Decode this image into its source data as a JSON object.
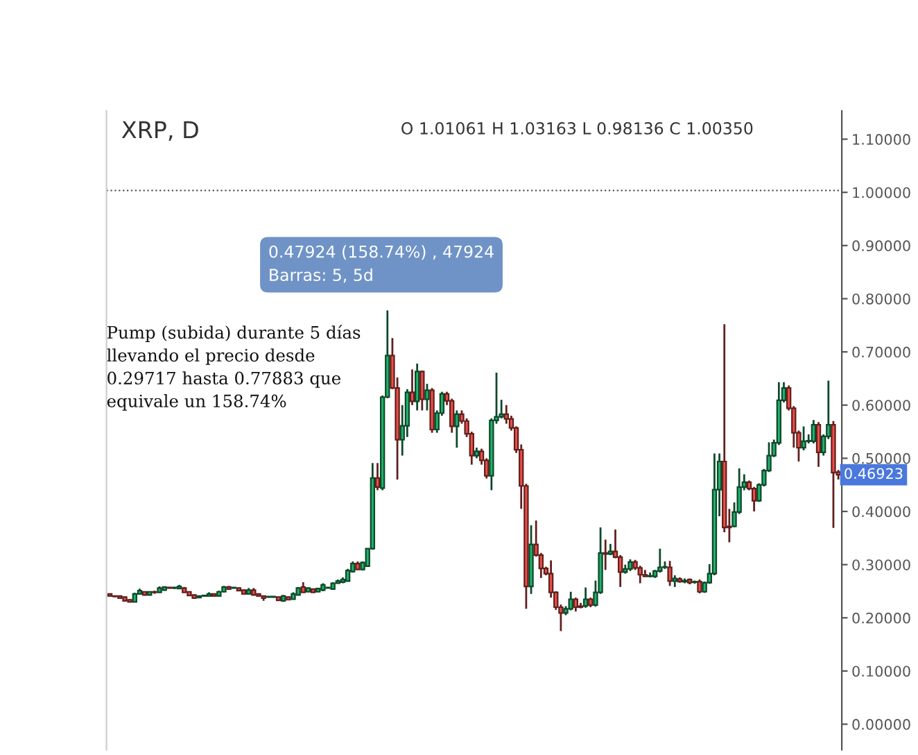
{
  "chart_data": {
    "type": "candlestick",
    "title": "XRP, D",
    "subtitle": "O 1.01061 H 1.03163 L 0.98136 C 1.00350",
    "annotations": [
      "0.47924 (158.74%) , 47924",
      "Barras: 5, 5d",
      "Pump (subida) durante 5 días\nllevando el precio desde\n0.29717 hasta 0.77883 que\nequivale un 158.74%",
      "0.46923"
    ],
    "colors": [
      "#ef4f49",
      "#ef4f49",
      "#ef4f49",
      "#ef4f49",
      "#ef4f49",
      "#22b36c",
      "#22b36c",
      "#ef4f49",
      "#22b36c",
      "#ef4f49",
      "#22b36c",
      "#22b36c",
      "#ef4f49",
      "#22b36c",
      "#22b36c",
      "#ef4f49",
      "#ef4f49",
      "#ef4f49",
      "#22b36c",
      "#22b36c",
      "#22b36c",
      "#ef4f49",
      "#22b36c",
      "#22b36c",
      "#ef4f49",
      "#22b36c",
      "#ef4f49",
      "#ef4f49",
      "#22b36c",
      "#ef4f49",
      "#ef4f49",
      "#ef4f49",
      "#22b36c",
      "#22b36c",
      "#ef4f49",
      "#22b36c",
      "#ef4f49",
      "#22b36c",
      "#22b36c",
      "#ef4f49",
      "#22b36c",
      "#ef4f49",
      "#22b36c",
      "#22b36c",
      "#22b36c",
      "#22b36c",
      "#22b36c",
      "#22b36c",
      "#22b36c",
      "#22b36c",
      "#ef4f49",
      "#22b36c",
      "#22b36c",
      "#22b36c",
      "#ef4f49",
      "#22b36c",
      "#22b36c",
      "#ef4f49",
      "#ef4f49",
      "#22b36c",
      "#22b36c",
      "#ef4f49",
      "#22b36c",
      "#ef4f49",
      "#22b36c",
      "#ef4f49",
      "#22b36c",
      "#22b36c",
      "#ef4f49",
      "#ef4f49",
      "#22b36c",
      "#ef4f49",
      "#ef4f49",
      "#ef4f49",
      "#22b36c",
      "#ef4f49",
      "#ef4f49",
      "#22b36c",
      "#22b36c",
      "#22b36c",
      "#ef4f49",
      "#ef4f49",
      "#ef4f49",
      "#ef4f49",
      "#ef4f49",
      "#22b36c",
      "#ef4f49",
      "#ef4f49",
      "#ef4f49",
      "#ef4f49",
      "#ef4f49",
      "#ef4f49",
      "#22b36c",
      "#22b36c",
      "#ef4f49",
      "#ef4f49",
      "#22b36c",
      "#ef4f49",
      "#22b36c",
      "#22b36c",
      "#ef4f49",
      "#22b36c",
      "#ef4f49",
      "#ef4f49",
      "#22b36c",
      "#22b36c",
      "#ef4f49",
      "#ef4f49",
      "#ef4f49",
      "#22b36c",
      "#22b36c",
      "#22b36c",
      "#22b36c",
      "#ef4f49",
      "#22b36c",
      "#ef4f49",
      "#22b36c",
      "#ef4f49",
      "#22b36c",
      "#ef4f49",
      "#22b36c",
      "#22b36c",
      "#22b36c",
      "#22b36c",
      "#ef4f49",
      "#ef4f49",
      "#22b36c",
      "#22b36c",
      "#22b36c",
      "#ef4f49",
      "#ef4f49",
      "#22b36c",
      "#22b36c",
      "#22b36c",
      "#22b36c",
      "#22b36c",
      "#22b36c",
      "#ef4f49",
      "#ef4f49",
      "#ef4f49",
      "#22b36c",
      "#22b36c",
      "#22b36c",
      "#ef4f49",
      "#22b36c",
      "#22b36c",
      "#ef4f49",
      "#ef4f49"
    ],
    "ylim": [
      -0.048,
      1.153
    ],
    "yticks": [
      {
        "value": 0,
        "label": "0.00000"
      },
      {
        "value": 0.1,
        "label": "0.10000"
      },
      {
        "value": 0.2,
        "label": "0.20000"
      },
      {
        "value": 0.3,
        "label": "0.30000"
      },
      {
        "value": 0.4,
        "label": "0.40000"
      },
      {
        "value": 0.5,
        "label": "0.50000"
      },
      {
        "value": 0.6,
        "label": "0.60000"
      },
      {
        "value": 0.7,
        "label": "0.70000"
      },
      {
        "value": 0.8,
        "label": "0.80000"
      },
      {
        "value": 0.9,
        "label": "0.90000"
      },
      {
        "value": 1.0,
        "label": "1.00000"
      },
      {
        "value": 1.1,
        "label": "1.10000"
      }
    ],
    "ref_lines": [
      {
        "axis": "y",
        "value": 1.0035,
        "line_style": "dotted",
        "color": "#444444"
      }
    ],
    "tick_labels": "y",
    "grid": false,
    "legend": false,
    "categories": [
      null,
      null,
      null,
      null,
      null,
      null,
      null,
      null,
      null,
      null,
      null,
      null,
      null,
      null,
      null,
      null,
      null,
      null,
      null,
      null,
      null,
      null,
      null,
      null,
      null,
      null,
      null,
      null,
      null,
      null,
      null,
      null,
      null,
      null,
      null,
      null,
      null,
      null,
      null,
      null,
      null,
      null,
      null,
      null,
      null,
      null,
      null,
      null,
      null,
      null,
      null,
      null,
      null,
      null,
      null,
      null,
      null,
      null,
      null,
      null,
      null,
      null,
      null,
      null,
      null,
      null,
      null,
      null,
      null,
      null,
      null,
      null,
      null,
      null,
      null,
      null,
      null,
      null,
      null,
      null,
      null,
      null,
      null,
      null,
      null,
      null,
      null,
      null,
      null,
      null,
      null,
      null,
      null,
      null,
      null,
      null,
      null,
      null,
      null,
      null,
      null,
      null,
      null,
      null,
      null,
      null,
      null,
      null,
      null,
      null,
      null,
      null,
      null,
      null,
      null,
      null,
      null,
      null,
      null,
      null,
      null,
      null,
      null,
      null,
      null,
      null,
      null,
      null,
      null,
      null,
      null,
      null,
      null,
      null,
      null,
      null,
      null,
      null,
      null,
      null,
      null,
      null,
      null,
      null,
      null,
      null,
      null,
      null
    ],
    "ohlc": [
      [
        0.245,
        0.246,
        0.24,
        0.241
      ],
      [
        0.241,
        0.242,
        0.239,
        0.24
      ],
      [
        0.241,
        0.242,
        0.236,
        0.237
      ],
      [
        0.239,
        0.24,
        0.231,
        0.232
      ],
      [
        0.234,
        0.235,
        0.229,
        0.23
      ],
      [
        0.23,
        0.247,
        0.229,
        0.245
      ],
      [
        0.245,
        0.255,
        0.244,
        0.251
      ],
      [
        0.249,
        0.25,
        0.242,
        0.243
      ],
      [
        0.243,
        0.25,
        0.242,
        0.249
      ],
      [
        0.249,
        0.251,
        0.245,
        0.248
      ],
      [
        0.248,
        0.259,
        0.247,
        0.256
      ],
      [
        0.252,
        0.259,
        0.251,
        0.258
      ],
      [
        0.257,
        0.258,
        0.255,
        0.256
      ],
      [
        0.256,
        0.258,
        0.254,
        0.256
      ],
      [
        0.255,
        0.262,
        0.254,
        0.259
      ],
      [
        0.256,
        0.258,
        0.247,
        0.248
      ],
      [
        0.249,
        0.25,
        0.241,
        0.242
      ],
      [
        0.243,
        0.244,
        0.236,
        0.237
      ],
      [
        0.238,
        0.242,
        0.237,
        0.241
      ],
      [
        0.241,
        0.243,
        0.24,
        0.241
      ],
      [
        0.241,
        0.248,
        0.24,
        0.245
      ],
      [
        0.245,
        0.246,
        0.24,
        0.241
      ],
      [
        0.241,
        0.251,
        0.24,
        0.249
      ],
      [
        0.249,
        0.26,
        0.248,
        0.258
      ],
      [
        0.258,
        0.26,
        0.253,
        0.254
      ],
      [
        0.256,
        0.258,
        0.255,
        0.256
      ],
      [
        0.256,
        0.257,
        0.25,
        0.251
      ],
      [
        0.252,
        0.253,
        0.244,
        0.245
      ],
      [
        0.245,
        0.256,
        0.244,
        0.252
      ],
      [
        0.252,
        0.256,
        0.242,
        0.243
      ],
      [
        0.245,
        0.246,
        0.24,
        0.241
      ],
      [
        0.241,
        0.242,
        0.232,
        0.237
      ],
      [
        0.239,
        0.24,
        0.238,
        0.239
      ],
      [
        0.239,
        0.241,
        0.238,
        0.239
      ],
      [
        0.239,
        0.24,
        0.232,
        0.233
      ],
      [
        0.232,
        0.243,
        0.23,
        0.241
      ],
      [
        0.239,
        0.24,
        0.233,
        0.234
      ],
      [
        0.235,
        0.248,
        0.234,
        0.245
      ],
      [
        0.243,
        0.258,
        0.242,
        0.256
      ],
      [
        0.258,
        0.267,
        0.247,
        0.248
      ],
      [
        0.249,
        0.257,
        0.248,
        0.256
      ],
      [
        0.254,
        0.255,
        0.247,
        0.248
      ],
      [
        0.249,
        0.256,
        0.248,
        0.255
      ],
      [
        0.252,
        0.265,
        0.25,
        0.262
      ],
      [
        0.256,
        0.258,
        0.255,
        0.256
      ],
      [
        0.254,
        0.267,
        0.253,
        0.265
      ],
      [
        0.265,
        0.272,
        0.264,
        0.269
      ],
      [
        0.267,
        0.276,
        0.265,
        0.272
      ],
      [
        0.269,
        0.292,
        0.268,
        0.289
      ],
      [
        0.287,
        0.306,
        0.285,
        0.302
      ],
      [
        0.302,
        0.306,
        0.29,
        0.291
      ],
      [
        0.291,
        0.306,
        0.289,
        0.304
      ],
      [
        0.297,
        0.33,
        0.296,
        0.33
      ],
      [
        0.33,
        0.491,
        0.328,
        0.463
      ],
      [
        0.463,
        0.491,
        0.44,
        0.446
      ],
      [
        0.444,
        0.618,
        0.44,
        0.615
      ],
      [
        0.615,
        0.778,
        0.613,
        0.693
      ],
      [
        0.693,
        0.726,
        0.63,
        0.632
      ],
      [
        0.632,
        0.652,
        0.46,
        0.535
      ],
      [
        0.535,
        0.6,
        0.505,
        0.561
      ],
      [
        0.561,
        0.63,
        0.54,
        0.624
      ],
      [
        0.624,
        0.667,
        0.6,
        0.607
      ],
      [
        0.607,
        0.678,
        0.59,
        0.663
      ],
      [
        0.663,
        0.665,
        0.59,
        0.611
      ],
      [
        0.611,
        0.64,
        0.59,
        0.628
      ],
      [
        0.628,
        0.632,
        0.548,
        0.554
      ],
      [
        0.554,
        0.59,
        0.548,
        0.585
      ],
      [
        0.585,
        0.625,
        0.58,
        0.621
      ],
      [
        0.621,
        0.625,
        0.6,
        0.608
      ],
      [
        0.608,
        0.612,
        0.548,
        0.56
      ],
      [
        0.56,
        0.59,
        0.52,
        0.583
      ],
      [
        0.583,
        0.59,
        0.565,
        0.57
      ],
      [
        0.57,
        0.575,
        0.54,
        0.546
      ],
      [
        0.546,
        0.55,
        0.488,
        0.505
      ],
      [
        0.505,
        0.52,
        0.5,
        0.513
      ],
      [
        0.513,
        0.518,
        0.488,
        0.496
      ],
      [
        0.496,
        0.5,
        0.462,
        0.467
      ],
      [
        0.467,
        0.575,
        0.44,
        0.571
      ],
      [
        0.571,
        0.661,
        0.565,
        0.578
      ],
      [
        0.578,
        0.61,
        0.575,
        0.583
      ],
      [
        0.583,
        0.6,
        0.565,
        0.574
      ],
      [
        0.574,
        0.58,
        0.552,
        0.557
      ],
      [
        0.557,
        0.56,
        0.51,
        0.516
      ],
      [
        0.516,
        0.526,
        0.405,
        0.448
      ],
      [
        0.448,
        0.452,
        0.217,
        0.259
      ],
      [
        0.259,
        0.374,
        0.245,
        0.338
      ],
      [
        0.338,
        0.383,
        0.315,
        0.318
      ],
      [
        0.318,
        0.322,
        0.275,
        0.293
      ],
      [
        0.293,
        0.296,
        0.28,
        0.283
      ],
      [
        0.283,
        0.308,
        0.238,
        0.248
      ],
      [
        0.248,
        0.25,
        0.215,
        0.22
      ],
      [
        0.22,
        0.225,
        0.175,
        0.209
      ],
      [
        0.209,
        0.222,
        0.205,
        0.217
      ],
      [
        0.217,
        0.249,
        0.214,
        0.235
      ],
      [
        0.235,
        0.238,
        0.212,
        0.22
      ],
      [
        0.222,
        0.228,
        0.218,
        0.22
      ],
      [
        0.222,
        0.257,
        0.219,
        0.235
      ],
      [
        0.235,
        0.238,
        0.22,
        0.224
      ],
      [
        0.224,
        0.27,
        0.221,
        0.248
      ],
      [
        0.248,
        0.37,
        0.245,
        0.322
      ],
      [
        0.322,
        0.347,
        0.29,
        0.32
      ],
      [
        0.32,
        0.339,
        0.318,
        0.325
      ],
      [
        0.325,
        0.366,
        0.312,
        0.314
      ],
      [
        0.314,
        0.318,
        0.258,
        0.286
      ],
      [
        0.286,
        0.3,
        0.283,
        0.292
      ],
      [
        0.292,
        0.31,
        0.288,
        0.305
      ],
      [
        0.305,
        0.309,
        0.29,
        0.294
      ],
      [
        0.294,
        0.298,
        0.265,
        0.281
      ],
      [
        0.281,
        0.29,
        0.278,
        0.278
      ],
      [
        0.278,
        0.285,
        0.276,
        0.278
      ],
      [
        0.278,
        0.29,
        0.275,
        0.288
      ],
      [
        0.288,
        0.33,
        0.285,
        0.295
      ],
      [
        0.295,
        0.306,
        0.292,
        0.295
      ],
      [
        0.295,
        0.307,
        0.26,
        0.269
      ],
      [
        0.269,
        0.28,
        0.258,
        0.274
      ],
      [
        0.273,
        0.276,
        0.266,
        0.268
      ],
      [
        0.268,
        0.274,
        0.265,
        0.27
      ],
      [
        0.272,
        0.274,
        0.263,
        0.266
      ],
      [
        0.267,
        0.27,
        0.264,
        0.267
      ],
      [
        0.268,
        0.272,
        0.246,
        0.249
      ],
      [
        0.249,
        0.268,
        0.247,
        0.266
      ],
      [
        0.266,
        0.301,
        0.264,
        0.283
      ],
      [
        0.283,
        0.509,
        0.28,
        0.441
      ],
      [
        0.441,
        0.509,
        0.391,
        0.494
      ],
      [
        0.494,
        0.752,
        0.361,
        0.37
      ],
      [
        0.372,
        0.405,
        0.342,
        0.37
      ],
      [
        0.372,
        0.417,
        0.37,
        0.399
      ],
      [
        0.399,
        0.481,
        0.395,
        0.446
      ],
      [
        0.446,
        0.47,
        0.44,
        0.455
      ],
      [
        0.455,
        0.458,
        0.44,
        0.443
      ],
      [
        0.443,
        0.446,
        0.4,
        0.42
      ],
      [
        0.42,
        0.453,
        0.418,
        0.45
      ],
      [
        0.45,
        0.48,
        0.447,
        0.477
      ],
      [
        0.477,
        0.53,
        0.474,
        0.505
      ],
      [
        0.505,
        0.535,
        0.502,
        0.529
      ],
      [
        0.529,
        0.643,
        0.525,
        0.609
      ],
      [
        0.609,
        0.643,
        0.605,
        0.632
      ],
      [
        0.632,
        0.637,
        0.59,
        0.594
      ],
      [
        0.594,
        0.598,
        0.52,
        0.548
      ],
      [
        0.548,
        0.552,
        0.494,
        0.52
      ],
      [
        0.52,
        0.56,
        0.515,
        0.532
      ],
      [
        0.532,
        0.545,
        0.528,
        0.533
      ],
      [
        0.532,
        0.572,
        0.528,
        0.563
      ],
      [
        0.563,
        0.568,
        0.484,
        0.511
      ],
      [
        0.511,
        0.545,
        0.505,
        0.541
      ],
      [
        0.541,
        0.646,
        0.536,
        0.563
      ],
      [
        0.563,
        0.57,
        0.369,
        0.473
      ],
      [
        0.474,
        0.478,
        0.46,
        0.469
      ]
    ]
  }
}
